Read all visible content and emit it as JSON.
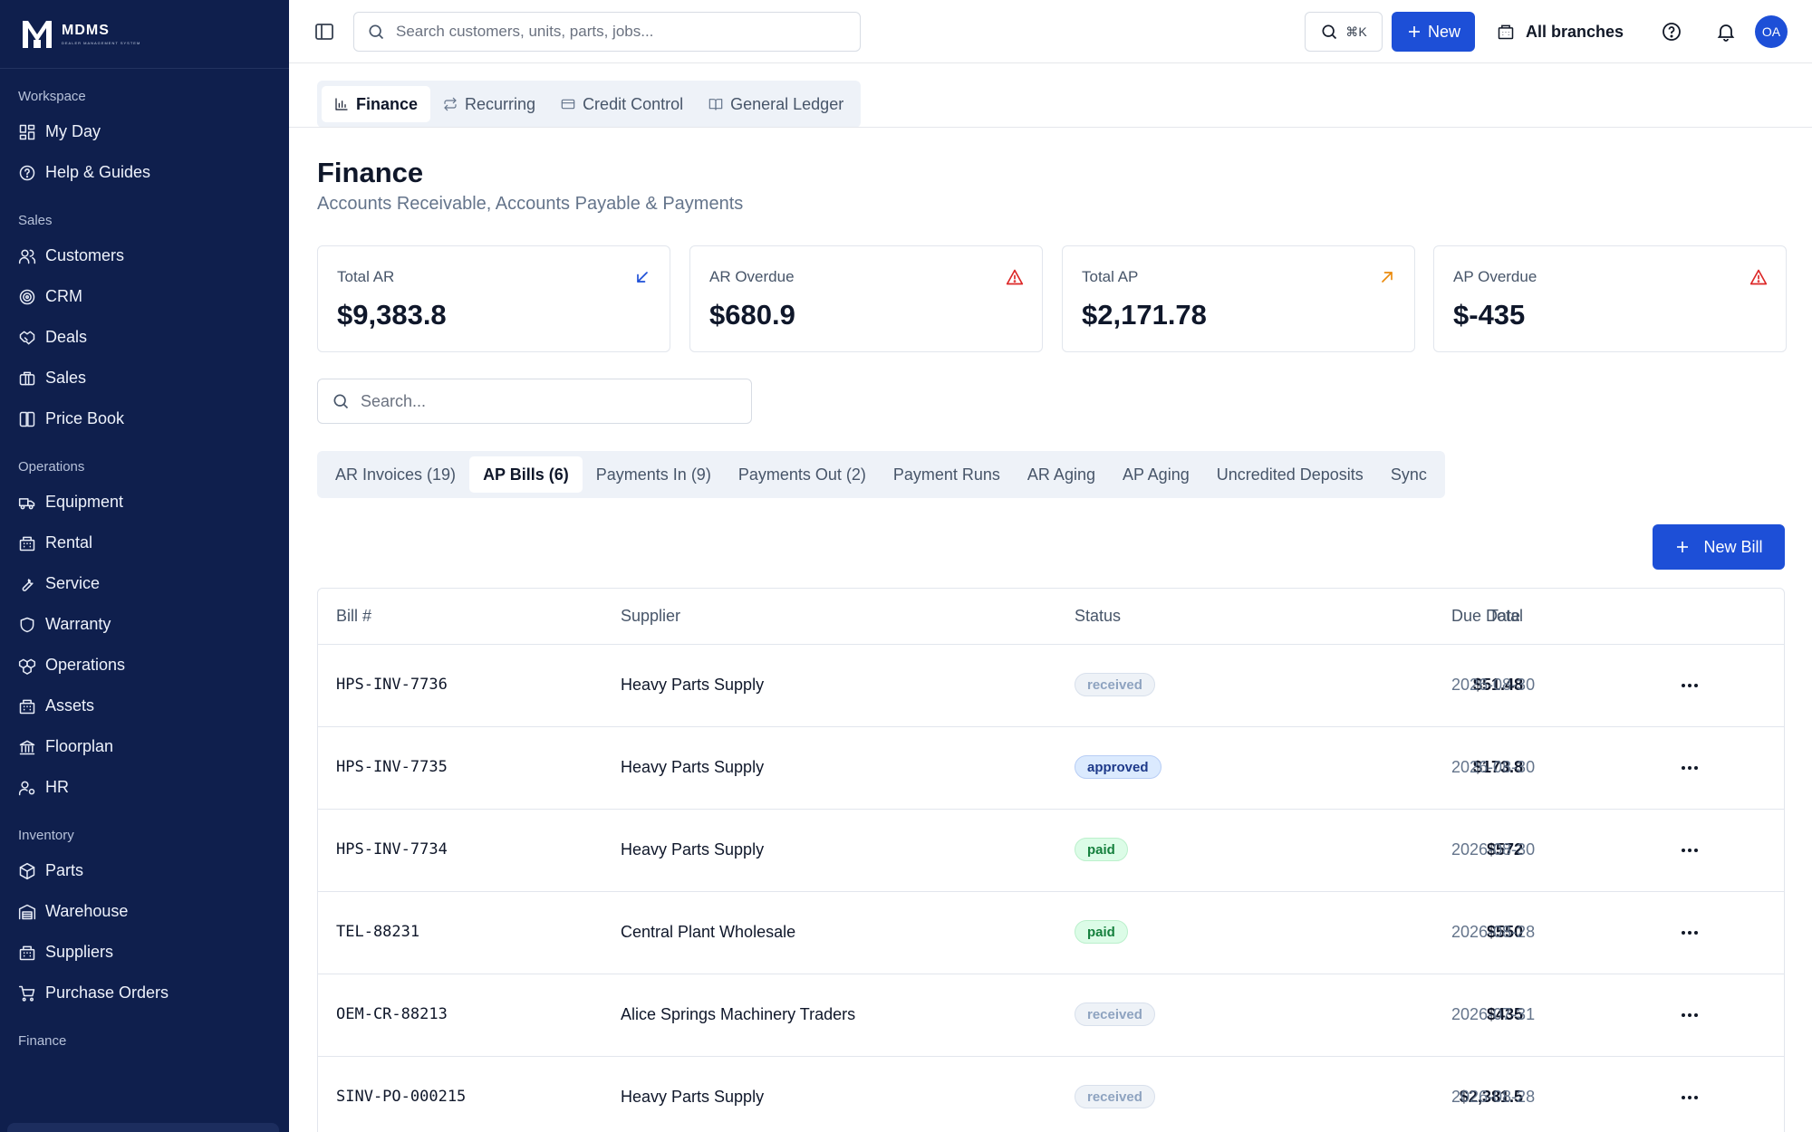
{
  "app": {
    "brand_name": "MDMS",
    "brand_sub": "DEALER MANAGEMENT SYSTEM"
  },
  "sidebar": {
    "sections": [
      {
        "title": "Workspace",
        "items": [
          {
            "label": "My Day",
            "icon": "grid-icon"
          },
          {
            "label": "Help & Guides",
            "icon": "help-circle-icon"
          }
        ]
      },
      {
        "title": "Sales",
        "items": [
          {
            "label": "Customers",
            "icon": "users-icon"
          },
          {
            "label": "CRM",
            "icon": "target-icon"
          },
          {
            "label": "Deals",
            "icon": "handshake-icon"
          },
          {
            "label": "Sales",
            "icon": "briefcase-icon"
          },
          {
            "label": "Price Book",
            "icon": "book-icon"
          }
        ]
      },
      {
        "title": "Operations",
        "items": [
          {
            "label": "Equipment",
            "icon": "truck-icon"
          },
          {
            "label": "Rental",
            "icon": "building-icon"
          },
          {
            "label": "Service",
            "icon": "wrench-icon"
          },
          {
            "label": "Warranty",
            "icon": "shield-icon"
          },
          {
            "label": "Operations",
            "icon": "boxes-icon"
          },
          {
            "label": "Assets",
            "icon": "building-icon"
          },
          {
            "label": "Floorplan",
            "icon": "landmark-icon"
          },
          {
            "label": "HR",
            "icon": "user-cog-icon"
          }
        ]
      },
      {
        "title": "Inventory",
        "items": [
          {
            "label": "Parts",
            "icon": "package-icon"
          },
          {
            "label": "Warehouse",
            "icon": "warehouse-icon"
          },
          {
            "label": "Suppliers",
            "icon": "building-icon"
          },
          {
            "label": "Purchase Orders",
            "icon": "cart-icon"
          }
        ]
      },
      {
        "title": "Finance",
        "items": []
      }
    ]
  },
  "topbar": {
    "search_placeholder": "Search customers, units, parts, jobs...",
    "shortcut": "⌘K",
    "new_label": "New",
    "branches_label": "All branches",
    "avatar_initials": "OA"
  },
  "module_tabs": [
    {
      "label": "Finance",
      "icon": "bar-chart-icon",
      "active": true
    },
    {
      "label": "Recurring",
      "icon": "repeat-icon",
      "active": false
    },
    {
      "label": "Credit Control",
      "icon": "credit-card-icon",
      "active": false
    },
    {
      "label": "General Ledger",
      "icon": "book-open-icon",
      "active": false
    }
  ],
  "page": {
    "title": "Finance",
    "subtitle": "Accounts Receivable, Accounts Payable & Payments"
  },
  "cards": [
    {
      "label": "Total AR",
      "value": "$9,383.8",
      "icon": "arrow-down-left-icon",
      "icon_color": "#1d4fd7"
    },
    {
      "label": "AR Overdue",
      "value": "$680.9",
      "icon": "alert-triangle-icon",
      "icon_color": "#dc2626"
    },
    {
      "label": "Total AP",
      "value": "$2,171.78",
      "icon": "arrow-up-right-icon",
      "icon_color": "#ea8a0c"
    },
    {
      "label": "AP Overdue",
      "value": "$-435",
      "icon": "alert-triangle-icon",
      "icon_color": "#dc2626"
    }
  ],
  "search": {
    "placeholder": "Search..."
  },
  "sub_tabs": [
    {
      "label": "AR Invoices (19)",
      "active": false
    },
    {
      "label": "AP Bills (6)",
      "active": true
    },
    {
      "label": "Payments In (9)",
      "active": false
    },
    {
      "label": "Payments Out (2)",
      "active": false
    },
    {
      "label": "Payment Runs",
      "active": false
    },
    {
      "label": "AR Aging",
      "active": false
    },
    {
      "label": "AP Aging",
      "active": false
    },
    {
      "label": "Uncredited Deposits",
      "active": false
    },
    {
      "label": "Sync",
      "active": false
    }
  ],
  "new_bill_label": "New Bill",
  "table": {
    "headers": {
      "bill": "Bill #",
      "supplier": "Supplier",
      "status": "Status",
      "total": "Total",
      "due": "Due Date"
    },
    "rows": [
      {
        "bill": "HPS-INV-7736",
        "supplier": "Heavy Parts Supply",
        "status": "received",
        "total": "$51.48",
        "due": "2026-08-30"
      },
      {
        "bill": "HPS-INV-7735",
        "supplier": "Heavy Parts Supply",
        "status": "approved",
        "total": "$173.8",
        "due": "2026-08-30"
      },
      {
        "bill": "HPS-INV-7734",
        "supplier": "Heavy Parts Supply",
        "status": "paid",
        "total": "$572",
        "due": "2026-08-30"
      },
      {
        "bill": "TEL-88231",
        "supplier": "Central Plant Wholesale",
        "status": "paid",
        "total": "$550",
        "due": "2026-08-28"
      },
      {
        "bill": "OEM-CR-88213",
        "supplier": "Alice Springs Machinery Traders",
        "status": "received",
        "total": "$435",
        "due": "2026-07-31"
      },
      {
        "bill": "SINV-PO-000215",
        "supplier": "Heavy Parts Supply",
        "status": "received",
        "total": "$2,381.5",
        "due": "2026-08-28"
      }
    ]
  },
  "colors": {
    "sidebar_bg": "#0f1f4d",
    "primary": "#1d4fd7"
  }
}
